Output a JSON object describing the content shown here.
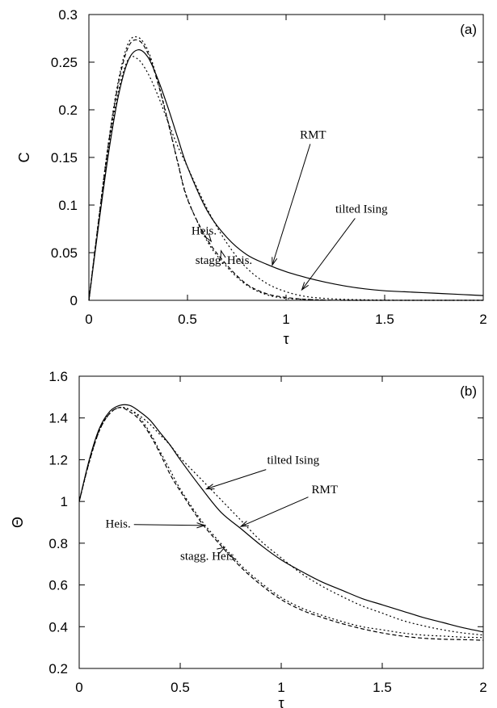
{
  "chart_data": [
    {
      "type": "line",
      "panel_label": "(a)",
      "xlabel": "τ",
      "ylabel": "C",
      "xlim": [
        0,
        2
      ],
      "ylim": [
        0,
        0.3
      ],
      "xticks": [
        0,
        0.5,
        1,
        1.5,
        2
      ],
      "xtick_labels": [
        "0",
        "0.5",
        "1",
        "1.5",
        "2"
      ],
      "yticks": [
        0,
        0.05,
        0.1,
        0.15,
        0.2,
        0.25,
        0.3
      ],
      "ytick_labels": [
        "0",
        "0.05",
        "0.1",
        "0.15",
        "0.2",
        "0.25",
        "0.3"
      ],
      "grid": false,
      "x": [
        0,
        0.05,
        0.1,
        0.15,
        0.2,
        0.25,
        0.3,
        0.35,
        0.4,
        0.45,
        0.5,
        0.6,
        0.7,
        0.8,
        0.9,
        1.0,
        1.1,
        1.2,
        1.3,
        1.4,
        1.5,
        1.6,
        1.7,
        1.8,
        1.9,
        2.0
      ],
      "series": [
        {
          "name": "RMT",
          "style": "solid",
          "values": [
            0,
            0.08,
            0.155,
            0.215,
            0.252,
            0.263,
            0.255,
            0.232,
            0.203,
            0.171,
            0.14,
            0.094,
            0.066,
            0.048,
            0.038,
            0.03,
            0.024,
            0.019,
            0.015,
            0.012,
            0.01,
            0.009,
            0.008,
            0.007,
            0.006,
            0.005
          ]
        },
        {
          "name": "tilted Ising",
          "style": "dotted",
          "values": [
            0,
            0.083,
            0.16,
            0.22,
            0.253,
            0.253,
            0.238,
            0.215,
            0.188,
            0.162,
            0.14,
            0.096,
            0.06,
            0.034,
            0.018,
            0.009,
            0.004,
            0.002,
            0.001,
            0.0005,
            0.0002,
            0,
            0,
            0,
            0,
            0
          ]
        },
        {
          "name": "Heis.",
          "style": "dashed",
          "values": [
            0,
            0.085,
            0.165,
            0.228,
            0.266,
            0.273,
            0.259,
            0.228,
            0.188,
            0.145,
            0.106,
            0.064,
            0.037,
            0.017,
            0.007,
            0.003,
            0.001,
            0.0003,
            0,
            0,
            0,
            0,
            0,
            0,
            0,
            0
          ]
        },
        {
          "name": "stagg. Heis.",
          "style": "dotted",
          "values": [
            0,
            0.086,
            0.167,
            0.231,
            0.27,
            0.276,
            0.262,
            0.23,
            0.189,
            0.146,
            0.107,
            0.062,
            0.035,
            0.016,
            0.006,
            0.002,
            0.001,
            0.0002,
            0,
            0,
            0,
            0,
            0,
            0,
            0,
            0
          ]
        }
      ],
      "annotations": [
        {
          "text": "RMT",
          "at": [
            1.07,
            0.17
          ],
          "points_to": [
            0.93,
            0.037
          ]
        },
        {
          "text": "tilted Ising",
          "at": [
            1.25,
            0.092
          ],
          "points_to": [
            1.08,
            0.011
          ]
        },
        {
          "text": "Heis.",
          "at": [
            0.52,
            0.069
          ],
          "points_to": [
            0.62,
            0.062
          ]
        },
        {
          "text": "stagg. Heis.",
          "at": [
            0.54,
            0.038
          ],
          "points_to": [
            0.67,
            0.052
          ]
        }
      ]
    },
    {
      "type": "line",
      "panel_label": "(b)",
      "xlabel": "τ",
      "ylabel": "Θ",
      "xlim": [
        0,
        2
      ],
      "ylim": [
        0.2,
        1.6
      ],
      "xticks": [
        0,
        0.5,
        1,
        1.5,
        2
      ],
      "xtick_labels": [
        "0",
        "0.5",
        "1",
        "1.5",
        "2"
      ],
      "yticks": [
        0.2,
        0.4,
        0.6,
        0.8,
        1,
        1.2,
        1.4,
        1.6
      ],
      "ytick_labels": [
        "0.2",
        "0.4",
        "0.6",
        "0.8",
        "1",
        "1.2",
        "1.4",
        "1.6"
      ],
      "grid": false,
      "x": [
        0,
        0.05,
        0.1,
        0.15,
        0.2,
        0.25,
        0.3,
        0.35,
        0.4,
        0.45,
        0.5,
        0.6,
        0.7,
        0.8,
        0.9,
        1.0,
        1.1,
        1.2,
        1.3,
        1.4,
        1.5,
        1.6,
        1.7,
        1.8,
        1.9,
        2.0
      ],
      "series": [
        {
          "name": "RMT",
          "style": "solid",
          "values": [
            1.0,
            1.2,
            1.35,
            1.43,
            1.46,
            1.46,
            1.43,
            1.39,
            1.33,
            1.27,
            1.2,
            1.07,
            0.95,
            0.87,
            0.79,
            0.72,
            0.665,
            0.615,
            0.575,
            0.535,
            0.505,
            0.475,
            0.445,
            0.42,
            0.395,
            0.375
          ]
        },
        {
          "name": "tilted Ising",
          "style": "dotted",
          "values": [
            1.0,
            1.19,
            1.34,
            1.42,
            1.45,
            1.44,
            1.41,
            1.37,
            1.32,
            1.27,
            1.21,
            1.11,
            1.01,
            0.91,
            0.81,
            0.73,
            0.655,
            0.595,
            0.545,
            0.5,
            0.465,
            0.43,
            0.405,
            0.385,
            0.37,
            0.36
          ]
        },
        {
          "name": "Heis.",
          "style": "dashed",
          "values": [
            1.0,
            1.19,
            1.34,
            1.42,
            1.45,
            1.43,
            1.39,
            1.32,
            1.23,
            1.13,
            1.05,
            0.905,
            0.79,
            0.685,
            0.6,
            0.53,
            0.48,
            0.445,
            0.415,
            0.39,
            0.37,
            0.355,
            0.345,
            0.34,
            0.338,
            0.335
          ]
        },
        {
          "name": "stagg. Heis.",
          "style": "dotted",
          "values": [
            1.0,
            1.19,
            1.34,
            1.42,
            1.45,
            1.44,
            1.4,
            1.33,
            1.24,
            1.15,
            1.06,
            0.915,
            0.8,
            0.695,
            0.61,
            0.54,
            0.49,
            0.455,
            0.425,
            0.4,
            0.385,
            0.37,
            0.36,
            0.355,
            0.35,
            0.348
          ]
        }
      ],
      "annotations": [
        {
          "text": "tilted Ising",
          "at": [
            0.93,
            1.18
          ],
          "points_to": [
            0.63,
            1.06
          ]
        },
        {
          "text": "RMT",
          "at": [
            1.15,
            1.04
          ],
          "points_to": [
            0.8,
            0.88
          ]
        },
        {
          "text": "Heis.",
          "at": [
            0.13,
            0.875
          ],
          "points_to": [
            0.62,
            0.885
          ]
        },
        {
          "text": "stagg. Heis.",
          "at": [
            0.5,
            0.72
          ],
          "points_to": [
            0.72,
            0.78
          ]
        }
      ]
    }
  ]
}
